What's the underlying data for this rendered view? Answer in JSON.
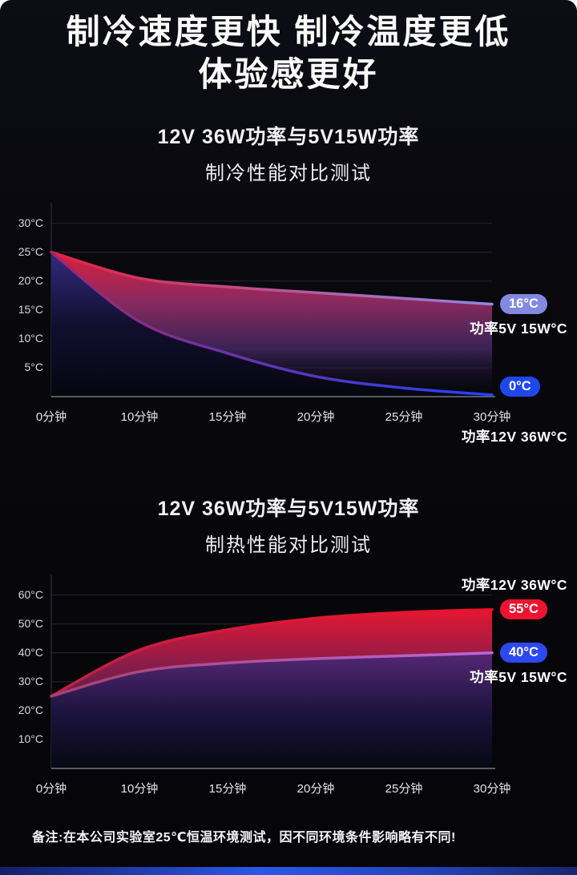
{
  "page": {
    "title_line1": "制冷速度更快 制冷温度更低",
    "title_line2": "体验感更好",
    "footnote": "备注:在本公司实验室25℃恒温环境测试，因不同环境条件影响略有不同!"
  },
  "colors": {
    "background": "#07070b",
    "accent_red": "#ee1330",
    "accent_blue": "#2142ff",
    "badge_lavender": "#8289e0"
  },
  "chart_data": [
    {
      "type": "line",
      "title": "12V 36W功率与5V15W功率",
      "subtitle": "制冷性能对比测试",
      "xlabel": "",
      "ylabel": "",
      "ylim": [
        0,
        33
      ],
      "grid": true,
      "legend_position": "none",
      "x_ticks": [
        "0分钟",
        "10分钟",
        "15分钟",
        "20分钟",
        "25分钟",
        "30分钟"
      ],
      "y_ticks": [
        {
          "label": "30°C",
          "value": 30
        },
        {
          "label": "25°C",
          "value": 25
        },
        {
          "label": "20°C",
          "value": 20
        },
        {
          "label": "15°C",
          "value": 15
        },
        {
          "label": "10°C",
          "value": 10
        },
        {
          "label": "5°C",
          "value": 5
        }
      ],
      "series": [
        {
          "name": "功率5V 15W",
          "values": [
            25,
            20.5,
            19,
            18,
            17,
            16
          ],
          "line": [
            "#e02342",
            "#8f87e2"
          ],
          "fill": [
            "#dd1f3e",
            "#8a2a5e",
            "#3a2355",
            "rgba(10,10,25,0)"
          ],
          "badge": {
            "text": "16°C",
            "bg": "#8289e0"
          },
          "label": {
            "text": "功率5V 15W°C",
            "pos": "below"
          }
        },
        {
          "name": "功率12V 36W",
          "values": [
            25,
            13,
            7.5,
            3.5,
            1.5,
            0.3
          ],
          "line": [
            "#a02868",
            "#2142ff"
          ],
          "fill": [
            "rgba(42,42,132,0.95)",
            "rgba(14,14,44,0.96)",
            "rgba(6,6,16,0.92)"
          ],
          "badge": {
            "text": "0°C",
            "bg": "#1f47ef"
          },
          "label": {
            "text": "功率12V 36W°C",
            "pos": "below"
          }
        }
      ]
    },
    {
      "type": "line",
      "title": "12V 36W功率与5V15W功率",
      "subtitle": "制热性能对比测试",
      "xlabel": "",
      "ylabel": "",
      "ylim": [
        0,
        66
      ],
      "grid": true,
      "legend_position": "none",
      "x_ticks": [
        "0分钟",
        "10分钟",
        "15分钟",
        "20分钟",
        "25分钟",
        "30分钟"
      ],
      "y_ticks": [
        {
          "label": "60°C",
          "value": 60
        },
        {
          "label": "50°C",
          "value": 50
        },
        {
          "label": "40°C",
          "value": 40
        },
        {
          "label": "30°C",
          "value": 30
        },
        {
          "label": "20°C",
          "value": 20
        },
        {
          "label": "10°C",
          "value": 10
        }
      ],
      "series": [
        {
          "name": "功率12V 36W",
          "values": [
            25,
            41,
            48,
            52,
            54,
            55
          ],
          "line": [
            "#c22048",
            "#f01226"
          ],
          "fill": [
            "#e51732",
            "#8e1c48",
            "#45204f",
            "rgba(8,8,20,0)"
          ],
          "badge": {
            "text": "55°C",
            "bg": "#ee1330"
          },
          "label": {
            "text": "功率12V 36W°C",
            "pos": "above"
          }
        },
        {
          "name": "功率5V 15W",
          "values": [
            25,
            33.5,
            36.5,
            38,
            39,
            40
          ],
          "line": [
            "#a84070",
            "#bb68d8"
          ],
          "fill": [
            "rgba(80,40,120,0.92)",
            "rgba(26,20,62,0.95)",
            "rgba(8,8,18,0.92)"
          ],
          "badge": {
            "text": "40°C",
            "bg": "#2c49f0"
          },
          "label": {
            "text": "功率5V 15W°C",
            "pos": "below"
          }
        }
      ]
    }
  ]
}
